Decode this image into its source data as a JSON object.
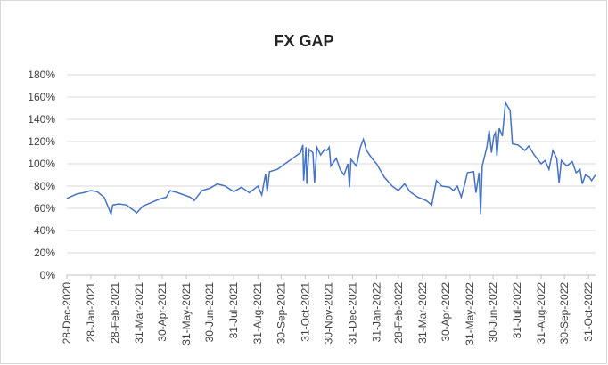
{
  "chart_data": {
    "type": "line",
    "title": "FX GAP",
    "xlim": [
      "2020-12-28",
      "2022-11-09"
    ],
    "xticks": [
      {
        "value": "2020-12-28",
        "label": "28-Dec-2020"
      },
      {
        "value": "2021-01-28",
        "label": "28-Jan-2021"
      },
      {
        "value": "2021-02-28",
        "label": "28-Feb-2021"
      },
      {
        "value": "2021-03-31",
        "label": "31-Mar-2021"
      },
      {
        "value": "2021-04-30",
        "label": "30-Apr-2021"
      },
      {
        "value": "2021-05-31",
        "label": "31-May-2021"
      },
      {
        "value": "2021-06-30",
        "label": "30-Jun-2021"
      },
      {
        "value": "2021-07-31",
        "label": "31-Jul-2021"
      },
      {
        "value": "2021-08-31",
        "label": "31-Aug-2021"
      },
      {
        "value": "2021-09-30",
        "label": "30-Sep-2021"
      },
      {
        "value": "2021-10-31",
        "label": "31-Oct-2021"
      },
      {
        "value": "2021-11-30",
        "label": "30-Nov-2021"
      },
      {
        "value": "2021-12-31",
        "label": "31-Dec-2021"
      },
      {
        "value": "2022-01-31",
        "label": "31-Jan-2022"
      },
      {
        "value": "2022-02-28",
        "label": "28-Feb-2022"
      },
      {
        "value": "2022-03-31",
        "label": "31-Mar-2022"
      },
      {
        "value": "2022-04-30",
        "label": "30-Apr-2022"
      },
      {
        "value": "2022-05-31",
        "label": "31-May-2022"
      },
      {
        "value": "2022-06-30",
        "label": "30-Jun-2022"
      },
      {
        "value": "2022-07-31",
        "label": "31-Jul-2022"
      },
      {
        "value": "2022-08-31",
        "label": "31-Aug-2022"
      },
      {
        "value": "2022-09-30",
        "label": "30-Sep-2022"
      },
      {
        "value": "2022-10-31",
        "label": "31-Oct-2022"
      }
    ],
    "ylim": [
      0,
      180
    ],
    "yticks": [
      {
        "value": 0,
        "label": "0%"
      },
      {
        "value": 20,
        "label": "20%"
      },
      {
        "value": 40,
        "label": "40%"
      },
      {
        "value": 60,
        "label": "60%"
      },
      {
        "value": 80,
        "label": "80%"
      },
      {
        "value": 100,
        "label": "100%"
      },
      {
        "value": 120,
        "label": "120%"
      },
      {
        "value": 140,
        "label": "140%"
      },
      {
        "value": 160,
        "label": "160%"
      },
      {
        "value": 180,
        "label": "180%"
      }
    ],
    "grid": true,
    "x": [
      "2020-12-28",
      "2021-01-10",
      "2021-01-18",
      "2021-01-28",
      "2021-02-05",
      "2021-02-14",
      "2021-02-20",
      "2021-02-23",
      "2021-02-25",
      "2021-03-05",
      "2021-03-15",
      "2021-03-28",
      "2021-04-05",
      "2021-04-15",
      "2021-04-25",
      "2021-05-05",
      "2021-05-10",
      "2021-05-20",
      "2021-05-28",
      "2021-06-05",
      "2021-06-10",
      "2021-06-20",
      "2021-06-30",
      "2021-07-10",
      "2021-07-20",
      "2021-07-31",
      "2021-08-10",
      "2021-08-20",
      "2021-08-31",
      "2021-09-05",
      "2021-09-10",
      "2021-09-12",
      "2021-09-15",
      "2021-09-25",
      "2021-10-05",
      "2021-10-15",
      "2021-10-25",
      "2021-10-28",
      "2021-10-29",
      "2021-11-01",
      "2021-11-02",
      "2021-11-05",
      "2021-11-10",
      "2021-11-12",
      "2021-11-15",
      "2021-11-20",
      "2021-11-25",
      "2021-11-28",
      "2021-12-01",
      "2021-12-03",
      "2021-12-10",
      "2021-12-15",
      "2021-12-20",
      "2021-12-25",
      "2021-12-27",
      "2021-12-29",
      "2022-01-05",
      "2022-01-10",
      "2022-01-14",
      "2022-01-18",
      "2022-01-25",
      "2022-01-31",
      "2022-02-10",
      "2022-02-20",
      "2022-02-28",
      "2022-03-08",
      "2022-03-15",
      "2022-03-25",
      "2022-04-05",
      "2022-04-12",
      "2022-04-18",
      "2022-04-25",
      "2022-05-05",
      "2022-05-10",
      "2022-05-15",
      "2022-05-20",
      "2022-05-25",
      "2022-05-28",
      "2022-06-05",
      "2022-06-08",
      "2022-06-12",
      "2022-06-14",
      "2022-06-16",
      "2022-06-22",
      "2022-06-25",
      "2022-06-28",
      "2022-07-01",
      "2022-07-03",
      "2022-07-05",
      "2022-07-08",
      "2022-07-12",
      "2022-07-16",
      "2022-07-22",
      "2022-07-25",
      "2022-08-01",
      "2022-08-10",
      "2022-08-15",
      "2022-08-22",
      "2022-08-31",
      "2022-09-05",
      "2022-09-10",
      "2022-09-15",
      "2022-09-20",
      "2022-09-23",
      "2022-09-26",
      "2022-10-03",
      "2022-10-10",
      "2022-10-15",
      "2022-10-20",
      "2022-10-23",
      "2022-10-27",
      "2022-11-01",
      "2022-11-04",
      "2022-11-09"
    ],
    "series": [
      {
        "color": "#4472c4",
        "values": [
          69,
          73,
          74,
          76,
          75,
          70,
          60,
          55,
          63,
          64,
          63,
          56,
          62,
          65,
          68,
          70,
          76,
          74,
          72,
          70,
          67,
          76,
          78,
          82,
          80,
          75,
          79,
          74,
          80,
          72,
          91,
          75,
          93,
          95,
          100,
          105,
          110,
          117,
          85,
          115,
          82,
          113,
          110,
          83,
          115,
          108,
          113,
          112,
          115,
          98,
          105,
          95,
          90,
          100,
          79,
          104,
          98,
          115,
          122,
          112,
          105,
          100,
          88,
          80,
          76,
          82,
          75,
          70,
          67,
          63,
          85,
          80,
          79,
          76,
          80,
          70,
          83,
          92,
          93,
          74,
          92,
          55,
          98,
          115,
          130,
          110,
          125,
          128,
          107,
          132,
          125,
          155,
          148,
          118,
          117,
          112,
          116,
          108,
          100,
          103,
          95,
          112,
          105,
          83,
          103,
          98,
          102,
          92,
          95,
          82,
          90,
          88,
          85,
          90
        ]
      }
    ]
  }
}
